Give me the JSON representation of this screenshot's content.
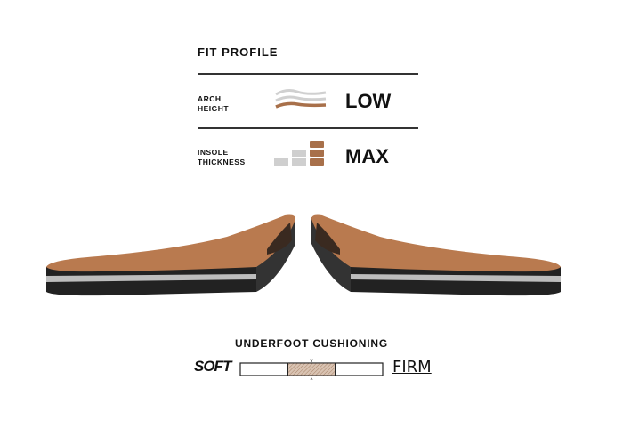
{
  "fit_profile": {
    "title": "FIT PROFILE",
    "arch_height": {
      "label_line1": "ARCH",
      "label_line2": "HEIGHT",
      "value": "LOW",
      "icon": "arch-waves-icon",
      "level": 1,
      "levels": 3
    },
    "insole_thickness": {
      "label_line1": "INSOLE",
      "label_line2": "THICKNESS",
      "value": "MAX",
      "icon": "thickness-bars-icon",
      "level": 3,
      "levels": 3
    }
  },
  "cushioning": {
    "title": "UNDERFOOT CUSHIONING",
    "min_label": "SOFT",
    "max_label": "FIRM",
    "position": 0.5
  },
  "colors": {
    "accent": "#a8704a",
    "inactive": "#cfcfcf",
    "insole_top": "#b97a4f"
  }
}
